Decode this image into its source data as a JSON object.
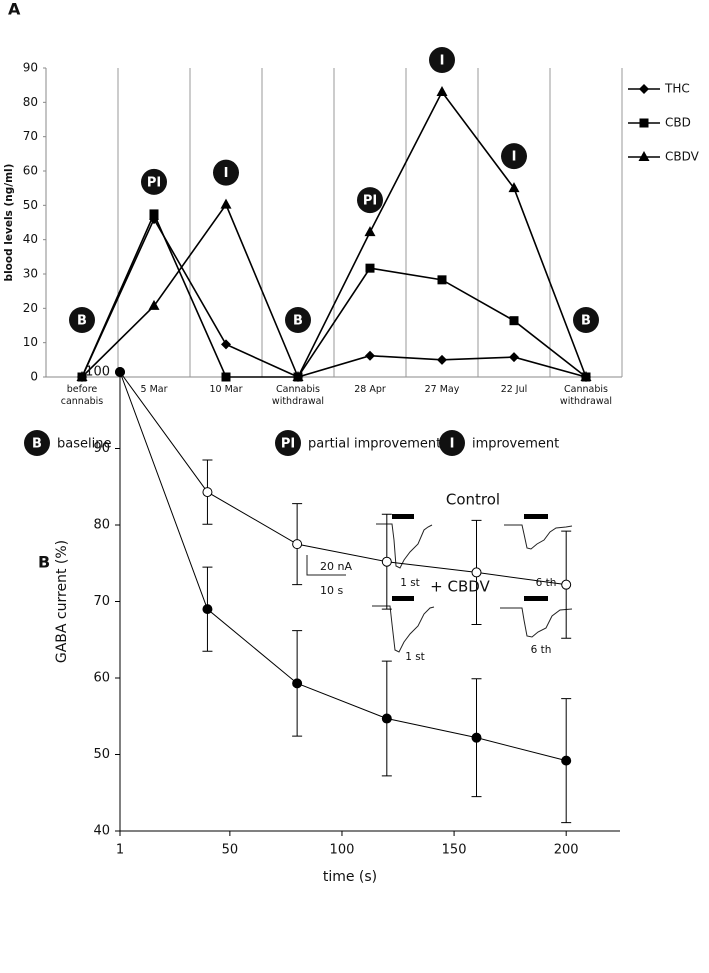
{
  "chart_data": [
    {
      "type": "line",
      "panel": "A",
      "y_label": "blood levels (ng/ml)",
      "categories": [
        "before cannabis",
        "5 Mar",
        "10 Mar",
        "Cannabis withdrawal",
        "28 Apr",
        "27 May",
        "22 Jul",
        "Cannabis withdrawal"
      ],
      "series": [
        {
          "name": "THC",
          "color": "#000000",
          "marker": "diamond",
          "values": [
            0,
            46,
            9.5,
            0,
            6.2,
            5,
            5.8,
            0
          ]
        },
        {
          "name": "CBD",
          "color": "#000000",
          "marker": "square",
          "values": [
            0,
            47.5,
            0,
            0,
            31.7,
            28.3,
            16.4,
            0
          ]
        },
        {
          "name": "CBDV",
          "color": "#000000",
          "marker": "triangle",
          "values": [
            0,
            20.7,
            50.2,
            0,
            42.2,
            83,
            55,
            0
          ]
        }
      ],
      "ylim": [
        0,
        90
      ],
      "yticks": [
        0,
        10,
        20,
        30,
        40,
        50,
        60,
        70,
        80,
        90
      ],
      "grid": "x",
      "legend": "right",
      "annotations": [
        "B",
        "PI",
        "I",
        "B",
        "PI",
        "I",
        "I",
        "B"
      ],
      "key": [
        {
          "symbol": "B",
          "label": "baseline"
        },
        {
          "symbol": "PI",
          "label": "partial improvement"
        },
        {
          "symbol": "I",
          "label": "improvement"
        }
      ]
    },
    {
      "type": "line",
      "panel": "B",
      "x_label": "time (s)",
      "y_label": "GABA current (%)",
      "x": [
        1,
        40,
        80,
        120,
        160,
        200
      ],
      "series": [
        {
          "name": "Control",
          "color": "#000000",
          "marker": "open-circle",
          "values": [
            100,
            84.3,
            77.5,
            75.2,
            73.8,
            72.2
          ],
          "errors": [
            0,
            4.2,
            5.3,
            6.2,
            6.8,
            7
          ]
        },
        {
          "name": "+ CBDV",
          "color": "#000000",
          "marker": "filled-circle",
          "values": [
            100,
            69,
            59.3,
            54.7,
            52.2,
            49.2
          ],
          "errors": [
            0,
            5.5,
            6.9,
            7.5,
            7.7,
            8.1
          ]
        }
      ],
      "xlim": [
        1,
        224
      ],
      "xticks": [
        1,
        50,
        100,
        150,
        200
      ],
      "ylim": [
        40,
        100
      ],
      "yticks": [
        40,
        50,
        60,
        70,
        80,
        90,
        100
      ],
      "grid": false,
      "inset": {
        "trace_labels": [
          "1 st",
          "6 th"
        ],
        "scale_labels": [
          "20 nA",
          "10 s"
        ]
      }
    }
  ]
}
